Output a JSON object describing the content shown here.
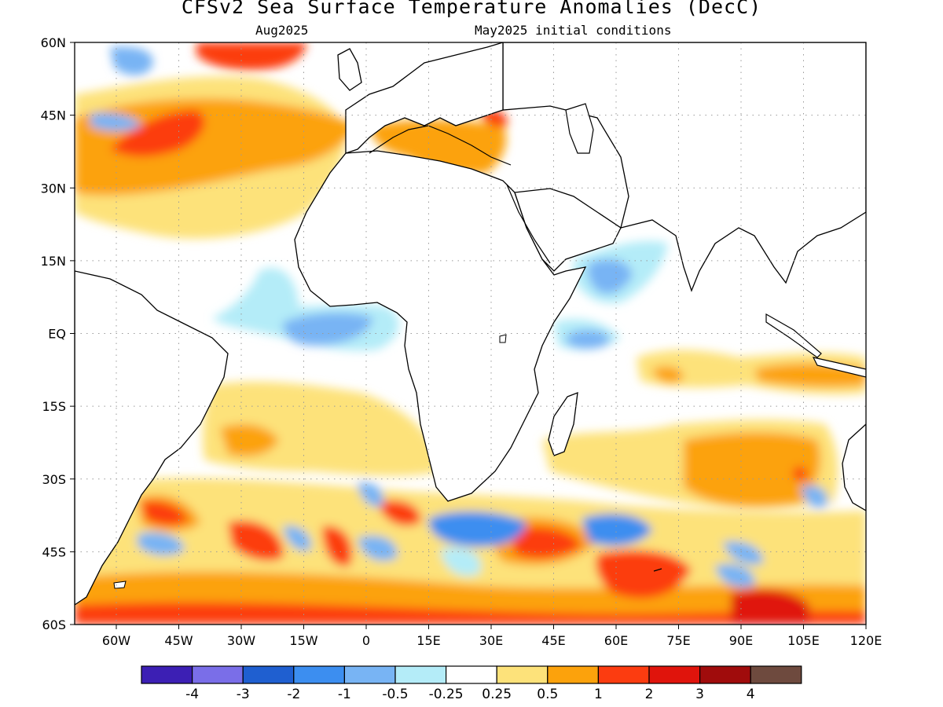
{
  "title": "CFSv2 Sea Surface Temperature Anomalies (DecC)",
  "valid_month": "Aug2025",
  "initial_conditions": "May2025 initial conditions",
  "colorbar": {
    "colors": [
      "#3c1fb4",
      "#7a6ee8",
      "#1f5fd0",
      "#3c8ef0",
      "#78b4f4",
      "#b4ecf8",
      "#ffffff",
      "#fde27a",
      "#fca20c",
      "#fc3c10",
      "#e0140c",
      "#a00c0c",
      "#6e4a3e"
    ],
    "labels": [
      "-4",
      "-3",
      "-2",
      "-1",
      "-0.5",
      "-0.25",
      "0.25",
      "0.5",
      "1",
      "2",
      "3",
      "4"
    ]
  },
  "chart_data": {
    "type": "heatmap",
    "lon_range": [
      -70,
      120
    ],
    "lat_range": [
      -60,
      60
    ],
    "x_tick_labels": [
      "60W",
      "45W",
      "30W",
      "15W",
      "0",
      "15E",
      "30E",
      "45E",
      "60E",
      "75E",
      "90E",
      "105E",
      "120E"
    ],
    "y_tick_labels": [
      "60N",
      "45N",
      "30N",
      "15N",
      "EQ",
      "15S",
      "30S",
      "45S",
      "60S"
    ],
    "grid": true,
    "anomaly_regions": [
      {
        "level": "0.5",
        "area": "North Atlantic mid-latitudes"
      },
      {
        "level": "1",
        "area": "North Atlantic 30N-45N"
      },
      {
        "level": "2",
        "area": "North Atlantic near 45N 30W"
      },
      {
        "level": "0.5",
        "area": "Mediterranean Sea"
      },
      {
        "level": "-0.5",
        "area": "Equatorial Atlantic / Gulf of Guinea"
      },
      {
        "level": "-0.5",
        "area": "Arabian Sea"
      },
      {
        "level": "0.5",
        "area": "South Atlantic subtropics"
      },
      {
        "level": "2",
        "area": "South Atlantic near 38S 50W"
      },
      {
        "level": "-1",
        "area": "Southern Ocean near 42S 30E and 60E"
      },
      {
        "level": "2",
        "area": "Southern Ocean near 45S 45E"
      },
      {
        "level": "1",
        "area": "South Indian Ocean 20S-35S"
      },
      {
        "level": "1",
        "area": "Southern Ocean band near 55S-60S"
      }
    ]
  }
}
